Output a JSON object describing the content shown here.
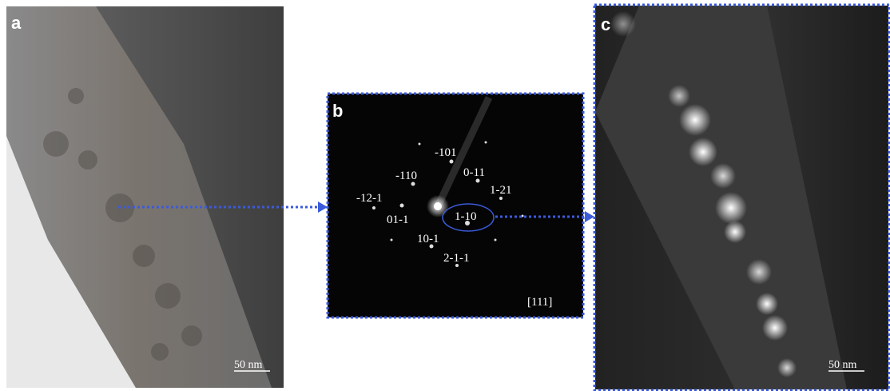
{
  "panels": [
    {
      "label": "a",
      "scale_bar": "50 nm"
    },
    {
      "label": "b",
      "spots": [
        "-101",
        "0-11",
        "-110",
        "1-21",
        "-12-1",
        "1-10",
        "01-1",
        "10-1",
        "2-1-1"
      ],
      "zone_axis": "[111]"
    },
    {
      "label": "c",
      "scale_bar": "50 nm"
    }
  ]
}
